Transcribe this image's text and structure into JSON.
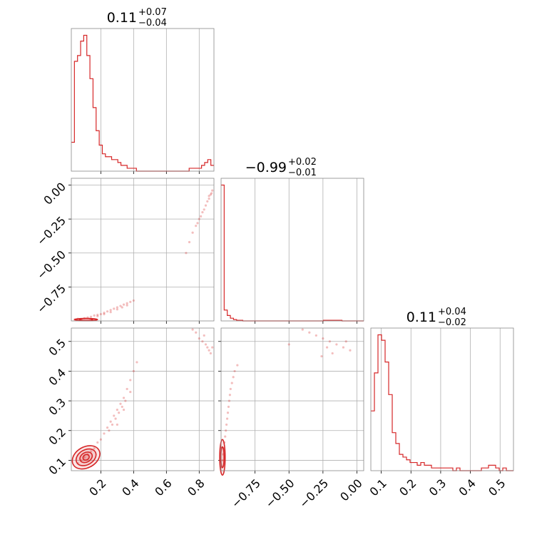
{
  "chart_data": {
    "type": "corner",
    "color": "#d62728",
    "grid": true,
    "panel_titles": [
      {
        "value": "0.11",
        "plus": "+0.07",
        "minus": "−0.04"
      },
      {
        "value": "−0.99",
        "plus": "+0.02",
        "minus": "−0.01"
      },
      {
        "value": "0.11",
        "plus": "+0.04",
        "minus": "−0.02"
      }
    ],
    "axes": {
      "p0": {
        "range": [
          0.02,
          0.89
        ],
        "ticks": [
          0.2,
          0.4,
          0.6,
          0.8
        ],
        "tick_labels": [
          "0.2",
          "0.4",
          "0.6",
          "0.8"
        ]
      },
      "p1": {
        "range": [
          -1.0,
          0.05
        ],
        "ticks": [
          -0.75,
          -0.5,
          -0.25,
          0.0
        ],
        "tick_labels": [
          "−0.75",
          "−0.50",
          "−0.25",
          "0.00"
        ]
      },
      "p2": {
        "range": [
          0.065,
          0.545
        ],
        "ticks": [
          0.1,
          0.2,
          0.3,
          0.4,
          0.5
        ],
        "tick_labels": [
          "0.1",
          "0.2",
          "0.3",
          "0.4",
          "0.5"
        ]
      }
    },
    "hist_p0": {
      "bins": [
        0.02,
        0.89
      ],
      "counts": [
        10,
        38,
        40,
        45,
        47,
        40,
        32,
        22,
        14,
        9,
        6,
        5,
        5,
        4,
        4,
        3,
        2,
        2,
        1,
        1,
        1,
        0,
        0,
        0,
        0,
        0,
        0,
        0,
        0,
        0,
        0,
        0,
        0,
        0,
        0,
        0,
        0,
        0,
        1,
        1,
        1,
        1,
        2,
        3,
        4,
        2
      ]
    },
    "hist_p1": {
      "bins": [
        -1.0,
        0.05
      ],
      "counts": [
        100,
        8,
        4,
        2,
        1,
        0.5,
        0.5,
        0,
        0,
        0,
        0,
        0,
        0,
        0,
        0,
        0,
        0,
        0,
        0,
        0,
        0,
        0,
        0,
        0,
        0,
        0,
        0,
        0,
        0,
        0,
        0,
        0,
        0,
        0.5,
        0.5,
        0.5,
        0.5,
        0.5,
        0.5,
        0,
        0,
        0,
        0,
        0,
        0,
        0
      ]
    },
    "hist_p2": {
      "bins": [
        0.065,
        0.545
      ],
      "counts": [
        22,
        36,
        50,
        48,
        40,
        28,
        14,
        10,
        6,
        5,
        4,
        3,
        3,
        2,
        3,
        2,
        2,
        1,
        1,
        1,
        1,
        1,
        1,
        0,
        1,
        0,
        0,
        0,
        0,
        0,
        0,
        1,
        1,
        2,
        2,
        1,
        0,
        1,
        0,
        0
      ]
    },
    "scatter_p0_p1": [
      [
        0.04,
        -0.99
      ],
      [
        0.06,
        -0.985
      ],
      [
        0.08,
        -0.99
      ],
      [
        0.1,
        -0.98
      ],
      [
        0.12,
        -0.975
      ],
      [
        0.14,
        -0.97
      ],
      [
        0.16,
        -0.96
      ],
      [
        0.18,
        -0.955
      ],
      [
        0.2,
        -0.95
      ],
      [
        0.22,
        -0.94
      ],
      [
        0.24,
        -0.93
      ],
      [
        0.26,
        -0.92
      ],
      [
        0.28,
        -0.91
      ],
      [
        0.3,
        -0.9
      ],
      [
        0.32,
        -0.89
      ],
      [
        0.34,
        -0.88
      ],
      [
        0.36,
        -0.87
      ],
      [
        0.38,
        -0.86
      ],
      [
        0.4,
        -0.85
      ],
      [
        0.18,
        -0.965
      ],
      [
        0.22,
        -0.95
      ],
      [
        0.26,
        -0.935
      ],
      [
        0.3,
        -0.915
      ],
      [
        0.33,
        -0.9
      ],
      [
        0.36,
        -0.885
      ],
      [
        0.72,
        -0.5
      ],
      [
        0.74,
        -0.42
      ],
      [
        0.76,
        -0.35
      ],
      [
        0.78,
        -0.3
      ],
      [
        0.8,
        -0.25
      ],
      [
        0.82,
        -0.2
      ],
      [
        0.84,
        -0.15
      ],
      [
        0.85,
        -0.12
      ],
      [
        0.86,
        -0.1
      ],
      [
        0.87,
        -0.07
      ],
      [
        0.88,
        -0.04
      ],
      [
        0.83,
        -0.18
      ],
      [
        0.81,
        -0.23
      ],
      [
        0.79,
        -0.28
      ],
      [
        0.86,
        -0.08
      ],
      [
        0.875,
        -0.06
      ]
    ],
    "scatter_p0_p2": [
      [
        0.06,
        0.09
      ],
      [
        0.08,
        0.1
      ],
      [
        0.1,
        0.11
      ],
      [
        0.12,
        0.12
      ],
      [
        0.14,
        0.13
      ],
      [
        0.16,
        0.14
      ],
      [
        0.18,
        0.16
      ],
      [
        0.2,
        0.17
      ],
      [
        0.22,
        0.19
      ],
      [
        0.24,
        0.21
      ],
      [
        0.26,
        0.23
      ],
      [
        0.28,
        0.25
      ],
      [
        0.3,
        0.27
      ],
      [
        0.32,
        0.29
      ],
      [
        0.34,
        0.31
      ],
      [
        0.36,
        0.34
      ],
      [
        0.38,
        0.37
      ],
      [
        0.4,
        0.4
      ],
      [
        0.42,
        0.43
      ],
      [
        0.25,
        0.2
      ],
      [
        0.27,
        0.22
      ],
      [
        0.29,
        0.24
      ],
      [
        0.31,
        0.26
      ],
      [
        0.33,
        0.28
      ],
      [
        0.35,
        0.3
      ],
      [
        0.3,
        0.22
      ],
      [
        0.34,
        0.27
      ],
      [
        0.38,
        0.33
      ],
      [
        0.78,
        0.53
      ],
      [
        0.8,
        0.51
      ],
      [
        0.82,
        0.5
      ],
      [
        0.84,
        0.49
      ],
      [
        0.85,
        0.48
      ],
      [
        0.86,
        0.47
      ],
      [
        0.87,
        0.46
      ],
      [
        0.88,
        0.48
      ],
      [
        0.83,
        0.52
      ],
      [
        0.76,
        0.54
      ]
    ],
    "scatter_p1_p2": [
      [
        -0.99,
        0.1
      ],
      [
        -0.985,
        0.12
      ],
      [
        -0.98,
        0.14
      ],
      [
        -0.975,
        0.16
      ],
      [
        -0.97,
        0.18
      ],
      [
        -0.965,
        0.2
      ],
      [
        -0.96,
        0.22
      ],
      [
        -0.955,
        0.24
      ],
      [
        -0.95,
        0.26
      ],
      [
        -0.945,
        0.28
      ],
      [
        -0.94,
        0.3
      ],
      [
        -0.935,
        0.32
      ],
      [
        -0.93,
        0.34
      ],
      [
        -0.92,
        0.36
      ],
      [
        -0.91,
        0.38
      ],
      [
        -0.9,
        0.4
      ],
      [
        -0.88,
        0.42
      ],
      [
        -0.4,
        0.54
      ],
      [
        -0.35,
        0.53
      ],
      [
        -0.3,
        0.52
      ],
      [
        -0.25,
        0.51
      ],
      [
        -0.2,
        0.5
      ],
      [
        -0.15,
        0.49
      ],
      [
        -0.1,
        0.48
      ],
      [
        -0.05,
        0.47
      ],
      [
        -0.22,
        0.48
      ],
      [
        -0.18,
        0.46
      ],
      [
        -0.26,
        0.45
      ],
      [
        -0.08,
        0.5
      ],
      [
        -0.5,
        0.49
      ]
    ],
    "contours_p0_p2": [
      {
        "center": [
          0.11,
          0.11
        ],
        "rx": 0.09,
        "ry": 0.035,
        "angle_deg": -30
      },
      {
        "center": [
          0.11,
          0.11
        ],
        "rx": 0.065,
        "ry": 0.025,
        "angle_deg": -30
      },
      {
        "center": [
          0.11,
          0.11
        ],
        "rx": 0.04,
        "ry": 0.016,
        "angle_deg": -30
      },
      {
        "center": [
          0.11,
          0.11
        ],
        "rx": 0.02,
        "ry": 0.009,
        "angle_deg": -30
      }
    ],
    "contours_p1_p2": [
      {
        "center": [
          -0.99,
          0.11
        ],
        "rx": 0.02,
        "ry": 0.06,
        "angle_deg": 0
      },
      {
        "center": [
          -0.99,
          0.11
        ],
        "rx": 0.012,
        "ry": 0.035,
        "angle_deg": 0
      }
    ],
    "contours_p0_p1": [
      {
        "center": [
          0.11,
          -0.99
        ],
        "rx": 0.07,
        "ry": 0.008,
        "angle_deg": 0
      },
      {
        "center": [
          0.11,
          -0.99
        ],
        "rx": 0.04,
        "ry": 0.005,
        "angle_deg": 0
      }
    ]
  }
}
